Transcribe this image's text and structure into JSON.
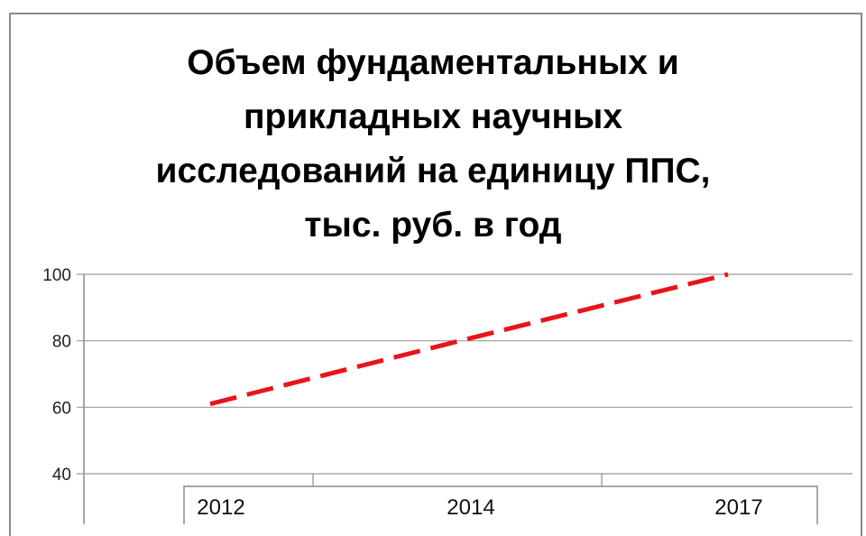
{
  "chart_data": {
    "type": "line",
    "title_lines": [
      "Объем фундаментальных и",
      "прикладных научных",
      "исследований на единицу ППС,",
      "тыс. руб. в год"
    ],
    "categories": [
      "2012",
      "2014",
      "2017"
    ],
    "series": [
      {
        "values": [
          61,
          80,
          100
        ],
        "color": "#e8141b",
        "style": "dashed"
      }
    ],
    "y_ticks": [
      "40",
      "60",
      "80",
      "100"
    ],
    "ylim": [
      40,
      100
    ],
    "grid": true
  }
}
